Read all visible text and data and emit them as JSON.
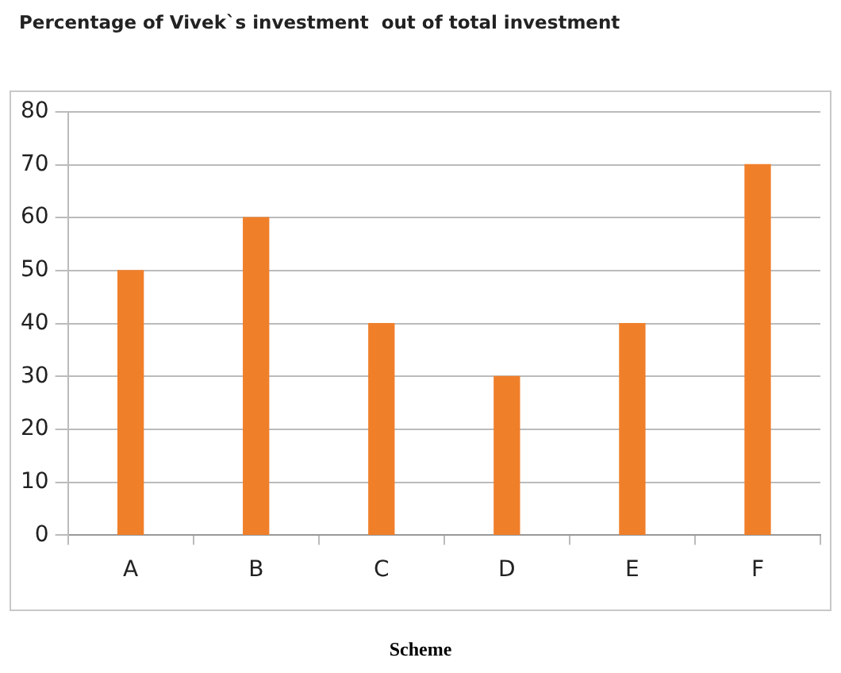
{
  "chart_data": {
    "type": "bar",
    "title": "Percentage of Vivek`s investment  out of total investment",
    "xlabel": "Scheme",
    "categories": [
      "A",
      "B",
      "C",
      "D",
      "E",
      "F"
    ],
    "values": [
      50,
      60,
      40,
      30,
      40,
      70
    ],
    "color": "#f07f2a",
    "ylim": [
      0,
      80
    ],
    "yticks": [
      0,
      10,
      20,
      30,
      40,
      50,
      60,
      70,
      80
    ],
    "grid": "y",
    "legend": false
  }
}
